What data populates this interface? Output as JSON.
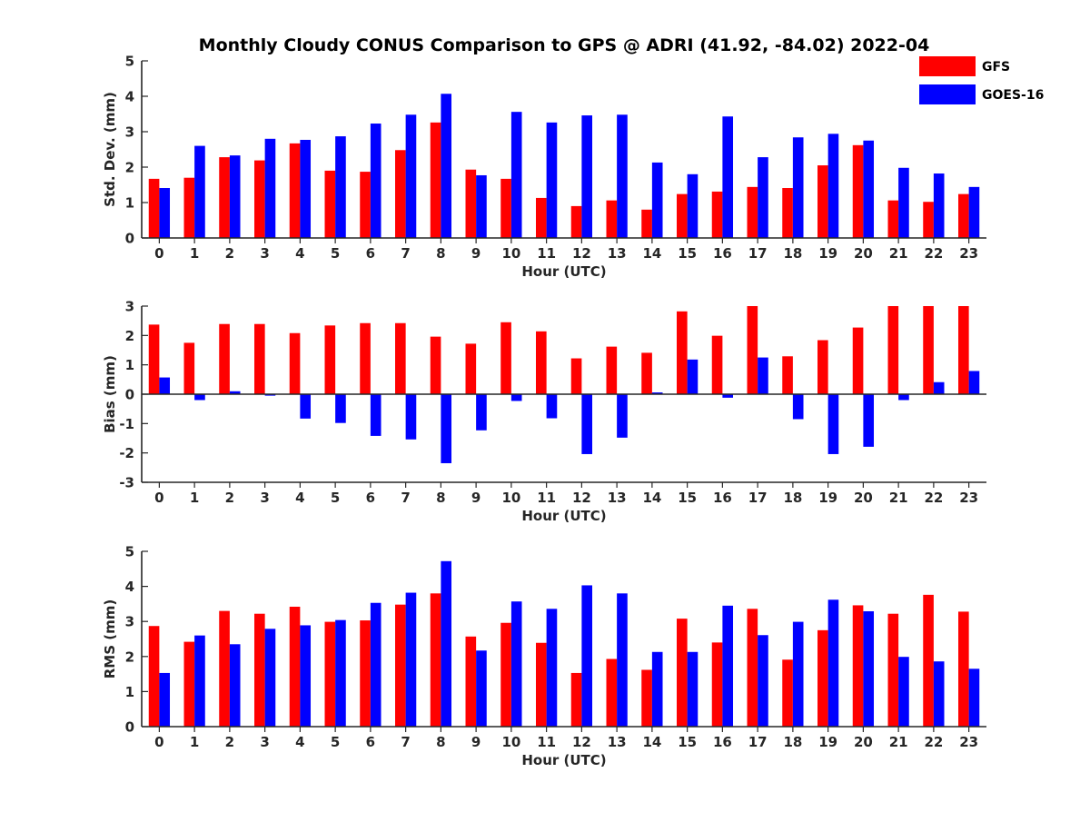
{
  "title": "Monthly Cloudy CONUS Comparison to GPS @ ADRI (41.92, -84.02) 2022-04",
  "legend": {
    "placement": "top-right",
    "entries": [
      {
        "label": "GFS",
        "color": "#ff0000"
      },
      {
        "label": "GOES-16",
        "color": "#0000ff"
      }
    ]
  },
  "chart_data": [
    {
      "type": "bar",
      "xlabel": "Hour (UTC)",
      "ylabel": "Std. Dev. (mm)",
      "ylim": [
        0,
        5
      ],
      "yticks": [
        0,
        1,
        2,
        3,
        4,
        5
      ],
      "categories": [
        0,
        1,
        2,
        3,
        4,
        5,
        6,
        7,
        8,
        9,
        10,
        11,
        12,
        13,
        14,
        15,
        16,
        17,
        18,
        19,
        20,
        21,
        22,
        23
      ],
      "series": [
        {
          "name": "GFS",
          "color": "#ff0000",
          "values": [
            1.67,
            1.7,
            2.28,
            2.19,
            2.67,
            1.9,
            1.87,
            2.48,
            3.26,
            1.93,
            1.67,
            1.13,
            0.9,
            1.06,
            0.8,
            1.24,
            1.31,
            1.44,
            1.41,
            2.05,
            2.62,
            1.06,
            1.02,
            1.24
          ]
        },
        {
          "name": "GOES-16",
          "color": "#0000ff",
          "values": [
            1.41,
            2.6,
            2.33,
            2.8,
            2.77,
            2.87,
            3.23,
            3.48,
            4.07,
            1.77,
            3.56,
            3.26,
            3.46,
            3.48,
            2.13,
            1.8,
            3.43,
            2.28,
            2.84,
            2.94,
            2.75,
            1.98,
            1.82,
            1.44
          ]
        }
      ]
    },
    {
      "type": "bar",
      "xlabel": "Hour (UTC)",
      "ylabel": "Bias (mm)",
      "ylim": [
        -3,
        3
      ],
      "yticks": [
        -3,
        -2,
        -1,
        0,
        1,
        2,
        3
      ],
      "zero_line": true,
      "categories": [
        0,
        1,
        2,
        3,
        4,
        5,
        6,
        7,
        8,
        9,
        10,
        11,
        12,
        13,
        14,
        15,
        16,
        17,
        18,
        19,
        20,
        21,
        22,
        23
      ],
      "series": [
        {
          "name": "GFS",
          "color": "#ff0000",
          "values": [
            2.37,
            1.75,
            2.39,
            2.39,
            2.08,
            2.34,
            2.42,
            2.42,
            1.96,
            1.72,
            2.45,
            2.14,
            1.22,
            1.62,
            1.41,
            2.82,
            1.99,
            3.0,
            1.29,
            1.84,
            2.27,
            3.0,
            3.0,
            3.0
          ]
        },
        {
          "name": "GOES-16",
          "color": "#0000ff",
          "values": [
            0.57,
            -0.2,
            0.1,
            -0.05,
            -0.83,
            -0.98,
            -1.42,
            -1.54,
            -2.35,
            -1.23,
            -0.23,
            -0.82,
            -2.04,
            -1.48,
            0.06,
            1.18,
            -0.12,
            1.25,
            -0.85,
            -2.04,
            -1.79,
            -0.2,
            0.41,
            0.79
          ]
        }
      ]
    },
    {
      "type": "bar",
      "xlabel": "Hour (UTC)",
      "ylabel": "RMS (mm)",
      "ylim": [
        0,
        5
      ],
      "yticks": [
        0,
        1,
        2,
        3,
        4,
        5
      ],
      "categories": [
        0,
        1,
        2,
        3,
        4,
        5,
        6,
        7,
        8,
        9,
        10,
        11,
        12,
        13,
        14,
        15,
        16,
        17,
        18,
        19,
        20,
        21,
        22,
        23
      ],
      "series": [
        {
          "name": "GFS",
          "color": "#ff0000",
          "values": [
            2.87,
            2.42,
            3.3,
            3.22,
            3.42,
            2.99,
            3.03,
            3.48,
            3.8,
            2.57,
            2.96,
            2.39,
            1.53,
            1.93,
            1.62,
            3.08,
            2.4,
            3.36,
            1.91,
            2.75,
            3.46,
            3.22,
            3.76,
            3.28
          ]
        },
        {
          "name": "GOES-16",
          "color": "#0000ff",
          "values": [
            1.53,
            2.6,
            2.35,
            2.79,
            2.89,
            3.04,
            3.53,
            3.82,
            4.72,
            2.17,
            3.57,
            3.36,
            4.03,
            3.8,
            2.13,
            2.13,
            3.45,
            2.61,
            2.99,
            3.62,
            3.29,
            1.99,
            1.86,
            1.65
          ]
        }
      ]
    }
  ]
}
